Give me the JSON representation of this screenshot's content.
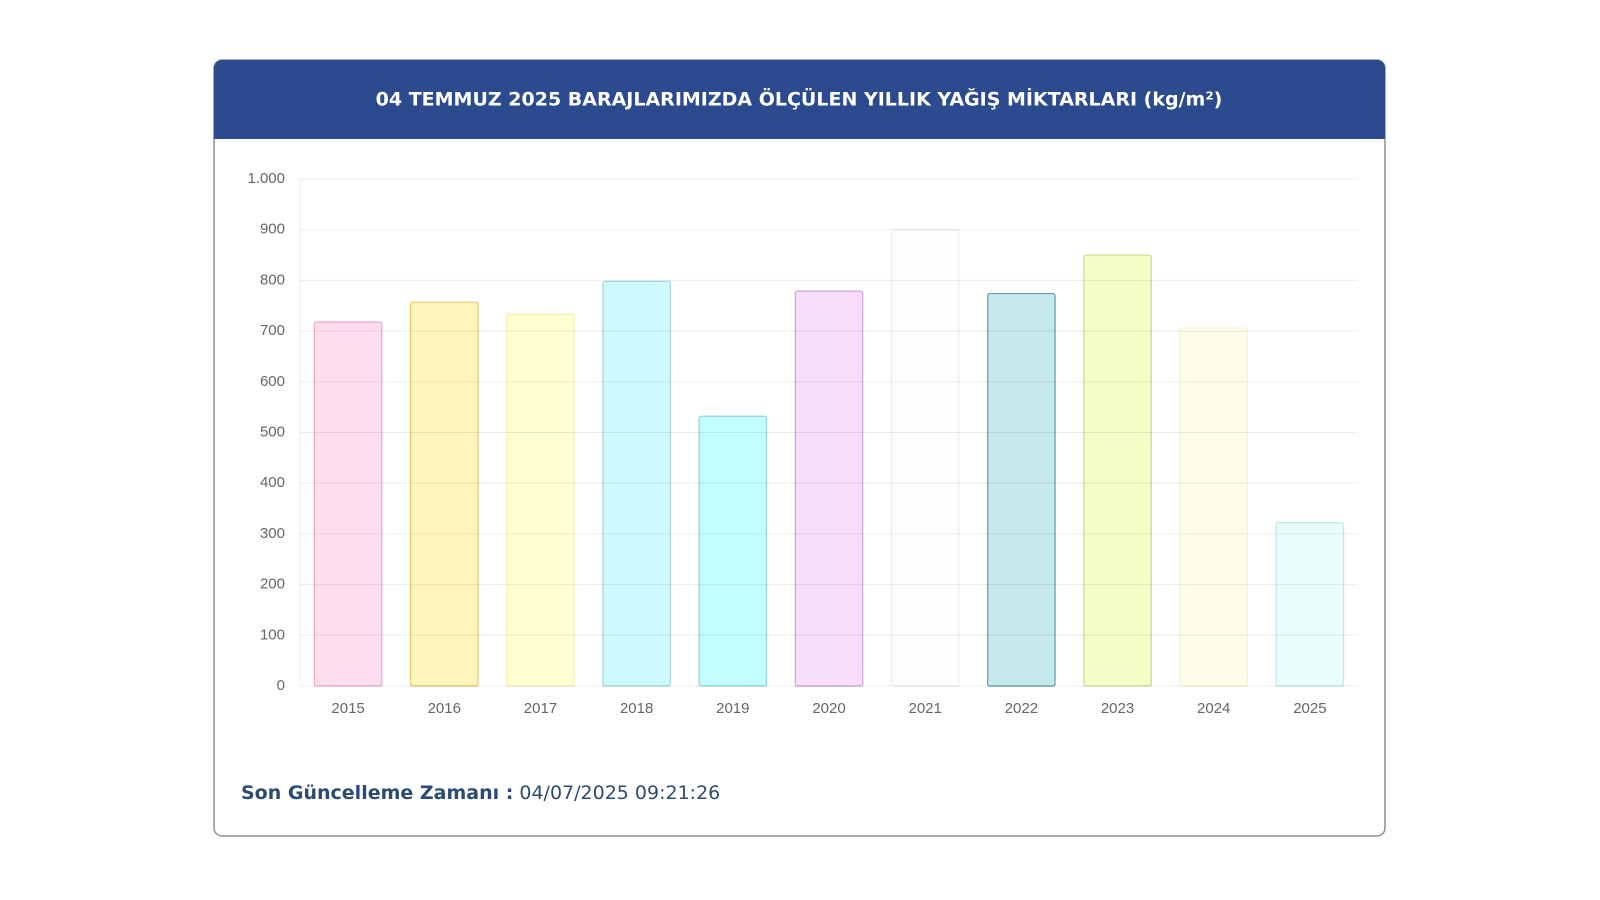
{
  "chart_data": {
    "type": "bar",
    "title": "04 TEMMUZ 2025 BARAJLARIMIZDA ÖLÇÜLEN YILLIK YAĞIŞ MİKTARLARI (kg/m²)",
    "categories": [
      "2015",
      "2016",
      "2017",
      "2018",
      "2019",
      "2020",
      "2021",
      "2022",
      "2023",
      "2024",
      "2025"
    ],
    "values": [
      718,
      757,
      733,
      798,
      532,
      779,
      900,
      774,
      850,
      706,
      322
    ],
    "colors": [
      "#ffdcee",
      "#fff5bd",
      "#ffffd2",
      "#cdfbfd",
      "#c3fdfd",
      "#f8ddfd",
      "#fefefe",
      "#c6e9ed",
      "#f6fdc6",
      "#fffde9",
      "#e9fdfd"
    ],
    "border_colors": [
      "#f4a9c9",
      "#efc66e",
      "#f5f0b0",
      "#9ed8dc",
      "#8fd6da",
      "#c8a2d6",
      "#eeeeee",
      "#5f9ca6",
      "#cdd893",
      "#f6f2d2",
      "#bfe6e8"
    ],
    "ylim": [
      0,
      1000
    ],
    "yticks": [
      0,
      100,
      200,
      300,
      400,
      500,
      600,
      700,
      800,
      900,
      {
        "value": 1000,
        "label": "1.000"
      }
    ],
    "grid": true
  },
  "footer": {
    "label": "Son Güncelleme Zamanı :",
    "value": "04/07/2025 09:21:26"
  }
}
